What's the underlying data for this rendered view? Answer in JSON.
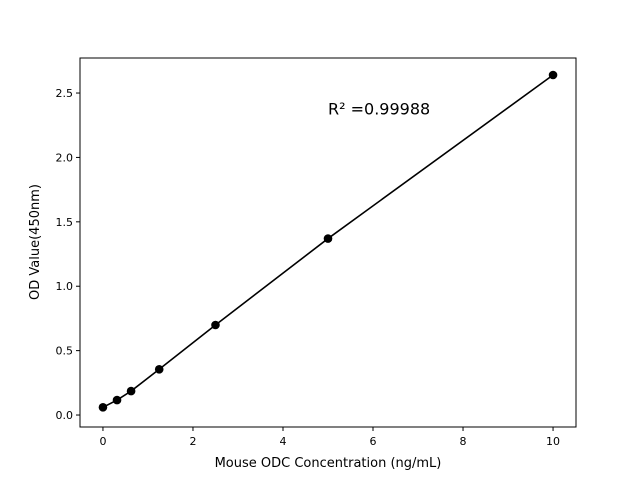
{
  "chart_data": {
    "type": "line",
    "title": "",
    "xlabel": "Mouse ODC Concentration (ng/mL)",
    "ylabel": "OD Value(450nm)",
    "x": [
      0,
      0.3125,
      0.625,
      1.25,
      2.5,
      5,
      10
    ],
    "series": [
      {
        "values": [
          0.06,
          0.116,
          0.186,
          0.355,
          0.699,
          1.37,
          2.64
        ],
        "color": "#000000",
        "marker": "circle"
      }
    ],
    "xlim": [
      -0.51,
      10.51
    ],
    "ylim": [
      -0.093,
      2.772
    ],
    "xticks": [
      "0",
      "2",
      "4",
      "6",
      "8",
      "10"
    ],
    "yticks": [
      "0.0",
      "0.5",
      "1.0",
      "1.5",
      "2.0",
      "2.5"
    ],
    "annotation": {
      "text": "R² =0.99988",
      "x": 5,
      "y": 2.38
    },
    "grid": false,
    "legend": "none"
  }
}
